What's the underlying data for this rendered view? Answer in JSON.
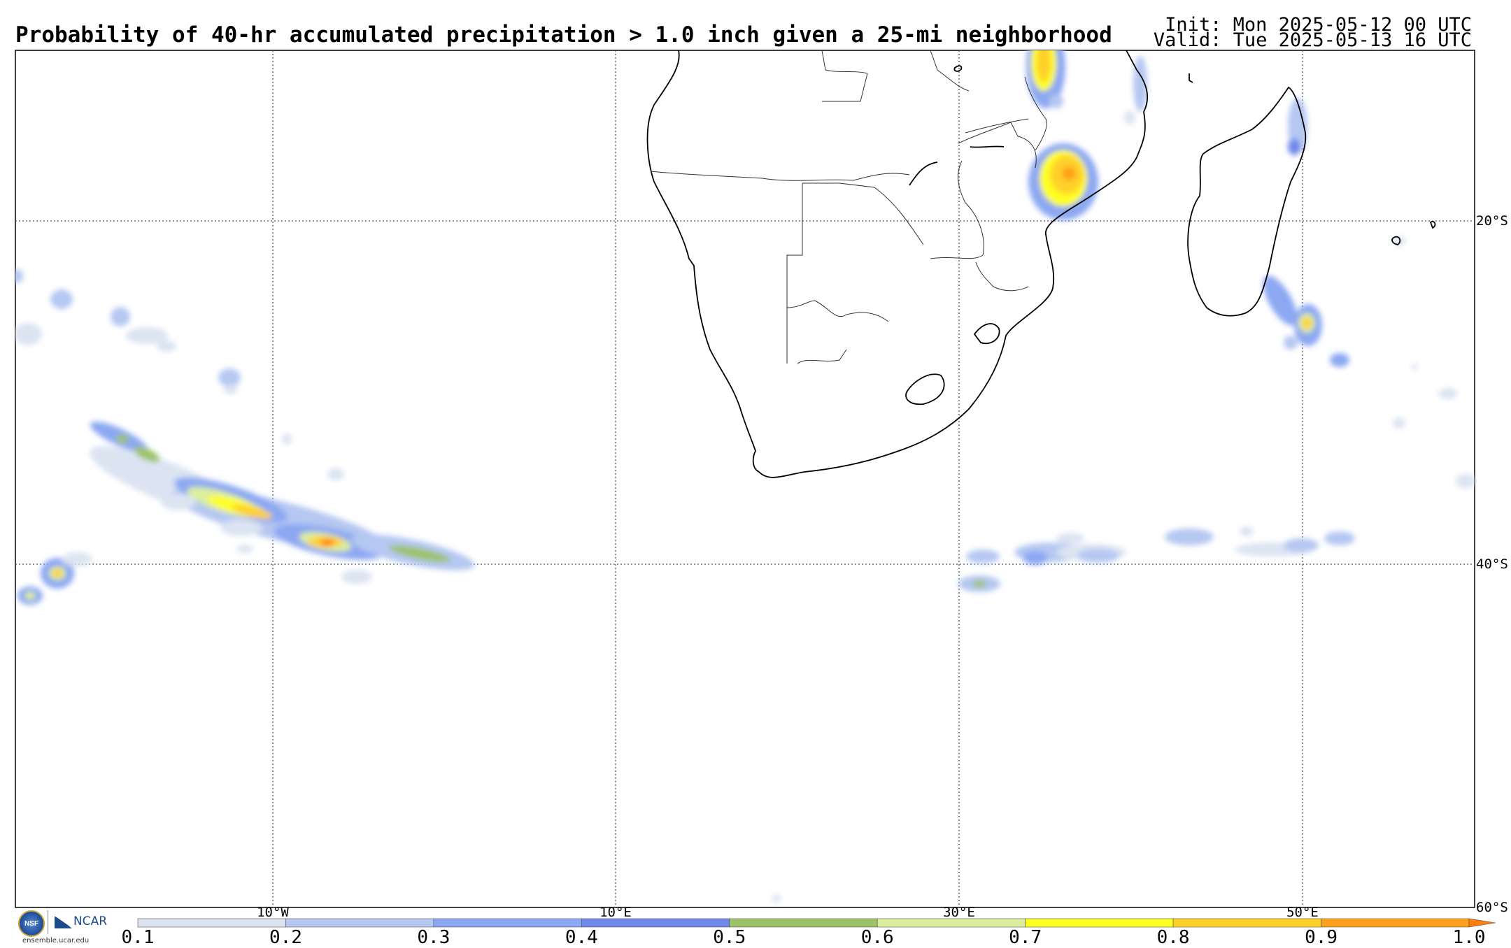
{
  "header": {
    "title": "Probability of 40-hr accumulated precipitation > 1.0 inch given a 25-mi neighborhood",
    "init": "Init: Mon 2025-05-12 00 UTC",
    "valid": "Valid: Tue 2025-05-13 16 UTC"
  },
  "map": {
    "lon_labels": [
      "10°W",
      "10°E",
      "30°E",
      "50°E"
    ],
    "lat_labels": [
      "20°S",
      "40°S",
      "60°S"
    ],
    "gridlines": true
  },
  "colorbar": {
    "ticks": [
      "0.1",
      "0.2",
      "0.3",
      "0.4",
      "0.5",
      "0.6",
      "0.7",
      "0.8",
      "0.9",
      "1.0"
    ],
    "colors": [
      "#dce4f2",
      "#b5c8f2",
      "#8ca8f2",
      "#6f88ea",
      "#9ec26a",
      "#dcee9e",
      "#ffff22",
      "#ffd02a",
      "#ffa11e"
    ],
    "extend_color": "#ff7f0e"
  },
  "logos": {
    "nsf": "NSF",
    "ncar": "NCAR",
    "site": "ensemble.ucar.edu"
  }
}
